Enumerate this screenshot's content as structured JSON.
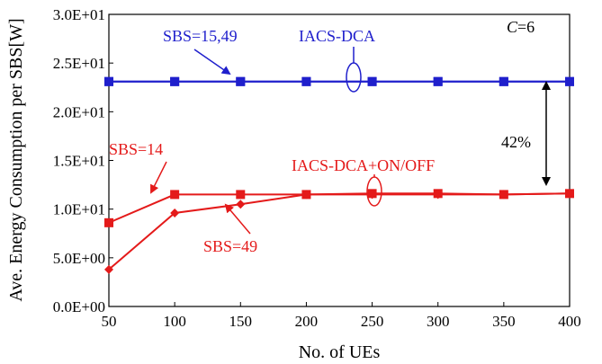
{
  "chart_data": {
    "type": "line",
    "title": "",
    "xlabel": "No. of UEs",
    "ylabel": "Ave. Energy Consumption per SBS[W]",
    "x": [
      50,
      100,
      150,
      200,
      250,
      300,
      350,
      400
    ],
    "x_ticks": [
      "50",
      "100",
      "150",
      "200",
      "250",
      "300",
      "350",
      "400"
    ],
    "xlim": [
      50,
      400
    ],
    "y_ticks": [
      {
        "value": 0,
        "label": "0.0E+00"
      },
      {
        "value": 5,
        "label": "5.0E+00"
      },
      {
        "value": 10,
        "label": "1.0E+01"
      },
      {
        "value": 15,
        "label": "1.5E+01"
      },
      {
        "value": 20,
        "label": "2.0E+01"
      },
      {
        "value": 25,
        "label": "2.5E+01"
      },
      {
        "value": 30,
        "label": "3.0E+01"
      }
    ],
    "ylim": [
      0,
      30
    ],
    "grid": false,
    "legend": "none",
    "colors": {
      "blue": "#1f1fcc",
      "red": "#e41a1a",
      "black": "#000000"
    },
    "series": [
      {
        "values": [
          23.1,
          23.1,
          23.1,
          23.1,
          23.1,
          23.1,
          23.1,
          23.1
        ],
        "color": "#1f1fcc",
        "marker": "square"
      },
      {
        "values": [
          23.1,
          23.1,
          23.1,
          23.1,
          23.1,
          23.1,
          23.1,
          23.1
        ],
        "color": "#1f1fcc",
        "marker": "square"
      },
      {
        "values": [
          8.6,
          11.5,
          11.5,
          11.5,
          11.6,
          11.6,
          11.5,
          11.6
        ],
        "color": "#e41a1a",
        "marker": "square"
      },
      {
        "values": [
          3.8,
          9.6,
          10.5,
          11.5,
          11.5,
          11.5,
          11.5,
          11.6
        ],
        "color": "#e41a1a",
        "marker": "diamond"
      }
    ],
    "annotations": {
      "c_label": {
        "italic": "C",
        "rest": "=6"
      },
      "sbs_15_49": "SBS=15,49",
      "iacs_dca": "IACS-DCA",
      "sbs_14": "SBS=14",
      "iacs_dca_onoff": "IACS-DCA+ON/OFF",
      "sbs_49": "SBS=49",
      "gap_percent": "42%"
    }
  }
}
